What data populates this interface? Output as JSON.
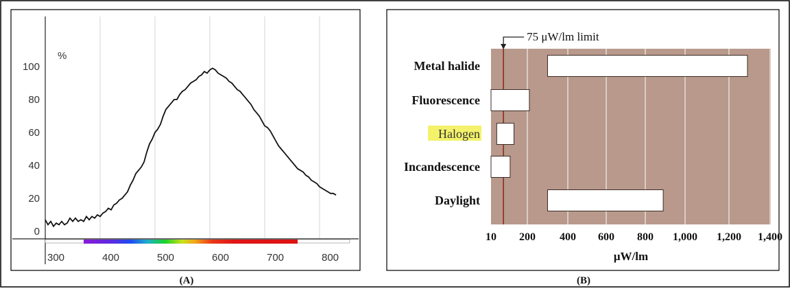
{
  "panel_labels": {
    "a": "(A)",
    "b": "(B)"
  },
  "chart_data": [
    {
      "type": "line",
      "ylabel": "%",
      "y_ticks": [
        "0",
        "20",
        "40",
        "60",
        "80",
        "100"
      ],
      "x_ticks": [
        "300",
        "400",
        "500",
        "600",
        "700",
        "800"
      ],
      "xlim": [
        300,
        830
      ],
      "ylim": [
        0,
        100
      ],
      "spectrum_band": [
        370,
        760
      ],
      "series": [
        {
          "x": [
            300,
            305,
            310,
            315,
            320,
            325,
            330,
            335,
            340,
            345,
            350,
            355,
            360,
            365,
            370,
            375,
            380,
            385,
            390,
            395,
            400,
            405,
            410,
            415,
            420,
            425,
            430,
            435,
            440,
            445,
            450,
            455,
            460,
            465,
            470,
            475,
            480,
            485,
            490,
            495,
            500,
            505,
            510,
            515,
            520,
            525,
            530,
            535,
            540,
            545,
            550,
            555,
            560,
            565,
            570,
            575,
            580,
            585,
            590,
            595,
            600,
            605,
            610,
            615,
            620,
            625,
            630,
            635,
            640,
            645,
            650,
            655,
            660,
            665,
            670,
            675,
            680,
            685,
            690,
            695,
            700,
            705,
            710,
            715,
            720,
            725,
            730,
            735,
            740,
            745,
            750,
            755,
            760,
            765,
            770,
            775,
            780,
            785,
            790,
            795,
            800,
            805,
            810,
            815,
            820,
            825,
            830
          ],
          "y": [
            7,
            4,
            6,
            3,
            5,
            4,
            6,
            4,
            5,
            8,
            6,
            8,
            6,
            7,
            6,
            9,
            7,
            9,
            8,
            10,
            9,
            11,
            12,
            14,
            13,
            16,
            17,
            19,
            20,
            22,
            24,
            28,
            31,
            35,
            37,
            39,
            42,
            48,
            53,
            56,
            60,
            62,
            65,
            70,
            74,
            76,
            78,
            80,
            80,
            83,
            85,
            86,
            88,
            90,
            91,
            92,
            94,
            95,
            97,
            96,
            98,
            99,
            98,
            96,
            95,
            94,
            93,
            91,
            90,
            88,
            86,
            85,
            83,
            81,
            79,
            77,
            74,
            72,
            70,
            67,
            64,
            63,
            61,
            58,
            55,
            52,
            50,
            48,
            46,
            44,
            42,
            40,
            38,
            37,
            36,
            34,
            33,
            31,
            30,
            29,
            27,
            26,
            25,
            24,
            23,
            23,
            22
          ]
        }
      ]
    },
    {
      "type": "bar",
      "title": "",
      "annotation": "75 μW/lm limit",
      "limit_value": 75,
      "xlabel": "μW/lm",
      "x_ticks": [
        {
          "label": "10",
          "value": 10
        },
        {
          "label": "200",
          "value": 200
        },
        {
          "label": "400",
          "value": 400
        },
        {
          "label": "600",
          "value": 600
        },
        {
          "label": "800",
          "value": 800
        },
        {
          "label": "1,000",
          "value": 1000
        },
        {
          "label": "1,200",
          "value": 1200
        },
        {
          "label": "1,400",
          "value": 1400
        }
      ],
      "xlim": [
        0,
        1400
      ],
      "categories": [
        "Metal halide",
        "Fluorescence",
        "Halogen",
        "Incandescence",
        "Daylight"
      ],
      "highlighted_category": "Halogen",
      "ranges": [
        [
          300,
          1290
        ],
        [
          10,
          210
        ],
        [
          40,
          130
        ],
        [
          10,
          110
        ],
        [
          300,
          890
        ]
      ],
      "colors": {
        "background": "#b8998c",
        "highlight": "#f3f26a",
        "limit_line": "#8b2a1e"
      }
    }
  ]
}
